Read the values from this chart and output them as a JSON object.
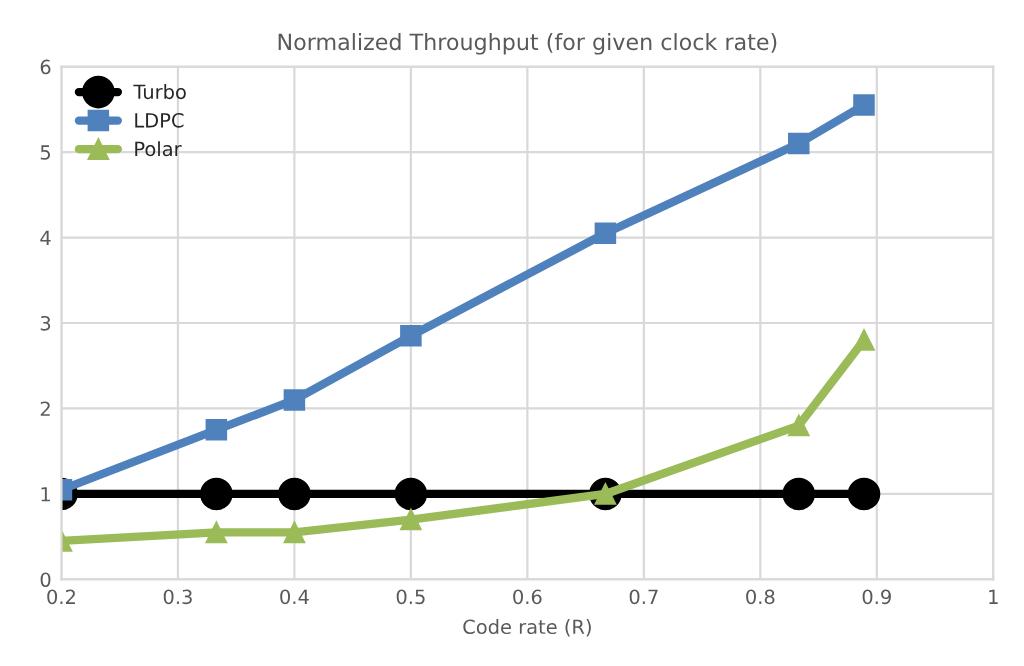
{
  "chart_data": {
    "type": "line",
    "title": "Normalized Throughput (for given clock rate)",
    "xlabel": "Code rate (R)",
    "x": [
      0.2,
      0.333,
      0.4,
      0.5,
      0.667,
      0.833,
      0.889
    ],
    "series": [
      {
        "name": "Turbo",
        "color": "#000000",
        "marker": "circle",
        "values": [
          1,
          1,
          1,
          1,
          1,
          1,
          1
        ]
      },
      {
        "name": "LDPC",
        "color": "#4f81bd",
        "marker": "square",
        "values": [
          1.05,
          1.75,
          2.1,
          2.85,
          4.05,
          5.1,
          5.55
        ]
      },
      {
        "name": "Polar",
        "color": "#9bbb59",
        "marker": "triangle",
        "values": [
          0.45,
          0.55,
          0.55,
          0.7,
          1.0,
          1.8,
          2.8
        ]
      }
    ],
    "xlim": [
      0.2,
      1
    ],
    "xticks": [
      0.2,
      0.3,
      0.4,
      0.5,
      0.6,
      0.7,
      0.8,
      0.9,
      1
    ],
    "ylim": [
      0,
      6
    ],
    "yticks": [
      0,
      1,
      2,
      3,
      4,
      5,
      6
    ],
    "grid": true,
    "legend": "top left",
    "line_style": "solid"
  }
}
